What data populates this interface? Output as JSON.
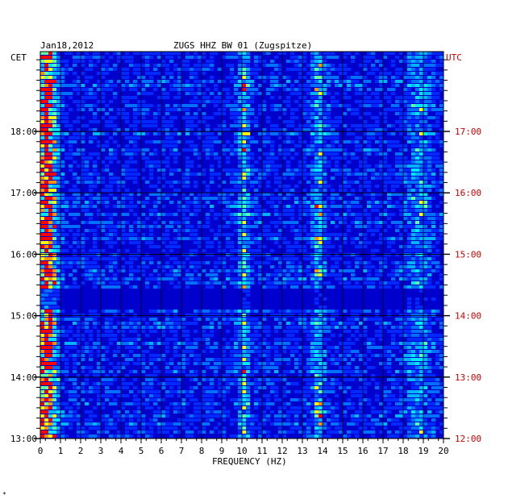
{
  "chart_data": {
    "type": "heatmap",
    "title": "ZUGS HHZ BW 01 (Zugspitze)",
    "date": "Jan18,2012",
    "xlabel": "FREQUENCY (HZ)",
    "left_axis_label": "CET",
    "right_axis_label": "UTC",
    "xlim": [
      0,
      20
    ],
    "x_ticks": [
      "0",
      "1",
      "2",
      "3",
      "4",
      "5",
      "6",
      "7",
      "8",
      "9",
      "10",
      "11",
      "12",
      "13",
      "14",
      "15",
      "16",
      "17",
      "18",
      "19",
      "20"
    ],
    "ylim_cet_hours": [
      13,
      19.3
    ],
    "cet_ticks": [
      "18:00",
      "17:00",
      "16:00",
      "15:00",
      "14:00",
      "13:00"
    ],
    "utc_ticks": [
      "17:00",
      "16:00",
      "15:00",
      "14:00",
      "13:00",
      "12:00"
    ],
    "grid": true,
    "colors": {
      "background": "#0000cc",
      "low": "#0000ff",
      "mid": "#00c8ff",
      "high": "#ffff00",
      "peak": "#ff0000",
      "grid": "#000000",
      "utc_text": "#cc0000"
    },
    "energy_bands_hz": [
      {
        "center": 0.3,
        "width": 0.5,
        "intensity": 0.9
      },
      {
        "center": 10.1,
        "width": 0.25,
        "intensity": 0.55
      },
      {
        "center": 13.8,
        "width": 0.3,
        "intensity": 0.5
      },
      {
        "center": 18.8,
        "width": 0.6,
        "intensity": 0.35
      }
    ],
    "quiet_hours_cet": [
      15.1,
      15.45
    ]
  },
  "footer_mark": "*"
}
